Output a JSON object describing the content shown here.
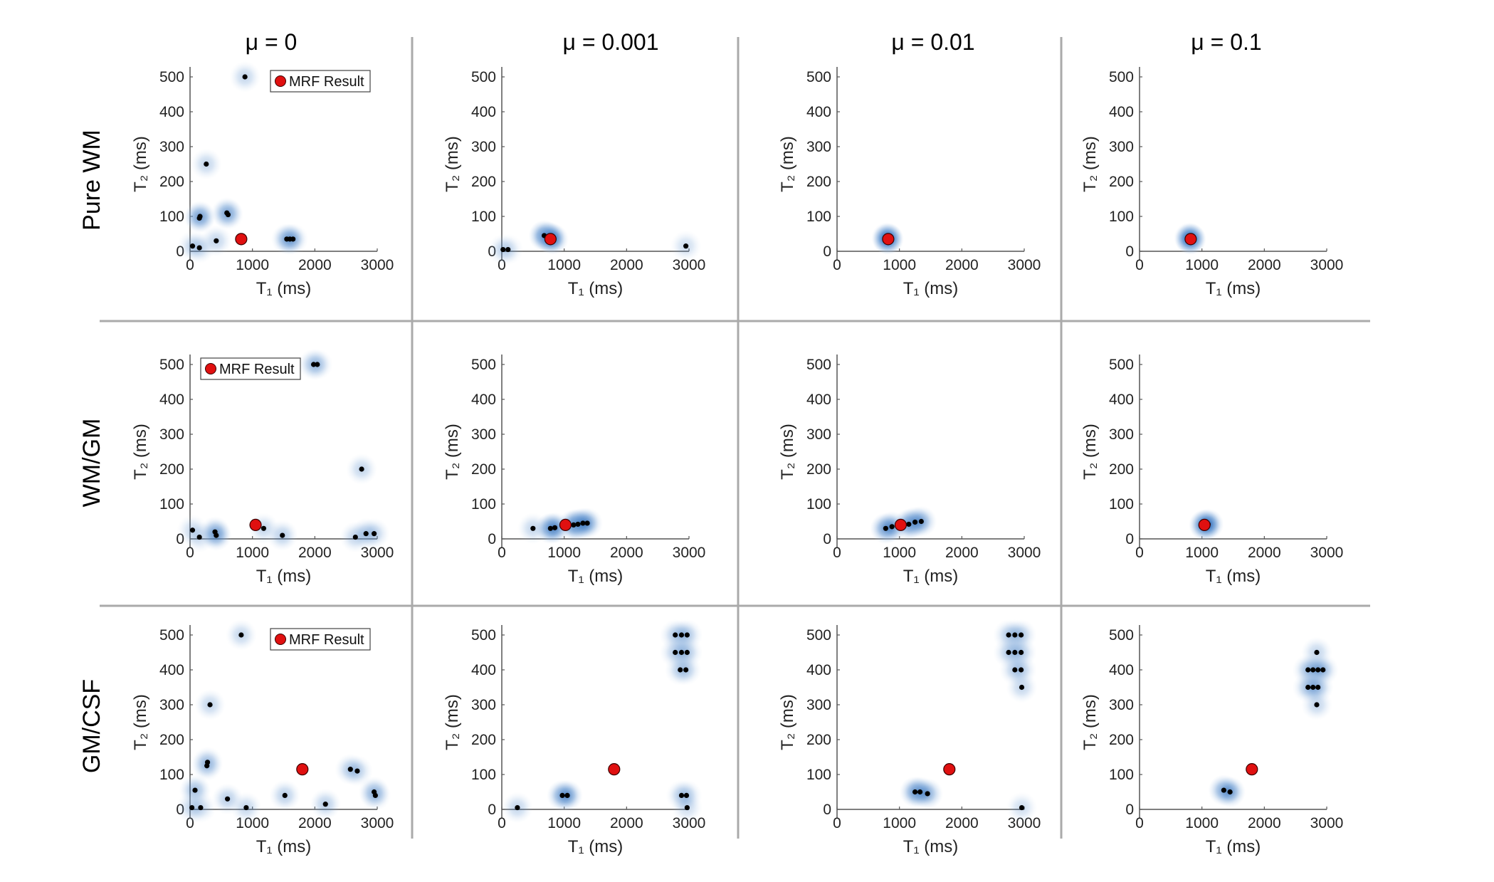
{
  "figure": {
    "column_titles": [
      "μ = 0",
      "μ = 0.001",
      "μ = 0.01",
      "μ = 0.1"
    ],
    "row_labels": [
      "Pure WM",
      "WM/GM",
      "GM/CSF"
    ],
    "xlabel": "T₁ (ms)",
    "ylabel": "T₂ (ms)",
    "legend_label": "MRF Result",
    "colors": {
      "dot": "#000000",
      "glow": "#4a86c8",
      "mrf": "#e01010",
      "divider": "#aaaaaa"
    }
  },
  "chart_data": [
    {
      "type": "scatter",
      "row": "Pure WM",
      "title": "μ = 0",
      "xlim": [
        0,
        3000
      ],
      "ylim": [
        0,
        500
      ],
      "xticks": [
        "0",
        "1000",
        "2000",
        "3000"
      ],
      "yticks": [
        "0",
        "100",
        "200",
        "300",
        "400",
        "500"
      ],
      "xlabel": "T₁ (ms)",
      "ylabel": "T₂ (ms)",
      "legend": "top-right",
      "mrf": [
        820,
        35
      ],
      "points": [
        [
          880,
          500,
          0.3
        ],
        [
          260,
          250,
          0.3
        ],
        [
          160,
          100,
          0.55
        ],
        [
          150,
          95,
          0.3
        ],
        [
          590,
          110,
          0.5
        ],
        [
          610,
          105,
          0.3
        ],
        [
          420,
          30,
          0.3
        ],
        [
          150,
          10,
          0.3
        ],
        [
          40,
          15,
          0.25
        ],
        [
          1550,
          35,
          0.45
        ],
        [
          1600,
          35,
          0.4
        ],
        [
          1650,
          35,
          0.3
        ]
      ]
    },
    {
      "type": "scatter",
      "row": "Pure WM",
      "title": "μ = 0.001",
      "xlim": [
        0,
        3000
      ],
      "ylim": [
        0,
        500
      ],
      "xticks": [
        "0",
        "1000",
        "2000",
        "3000"
      ],
      "yticks": [
        "0",
        "100",
        "200",
        "300",
        "400",
        "500"
      ],
      "xlabel": "T₁ (ms)",
      "ylabel": "T₂ (ms)",
      "legend": "",
      "mrf": [
        780,
        35
      ],
      "points": [
        [
          20,
          5,
          0.25
        ],
        [
          100,
          5,
          0.2
        ],
        [
          680,
          45,
          0.8
        ],
        [
          760,
          40,
          0.9
        ],
        [
          820,
          35,
          0.7
        ],
        [
          2950,
          15,
          0.25
        ]
      ]
    },
    {
      "type": "scatter",
      "row": "Pure WM",
      "title": "μ = 0.01",
      "xlim": [
        0,
        3000
      ],
      "ylim": [
        0,
        500
      ],
      "xticks": [
        "0",
        "1000",
        "2000",
        "3000"
      ],
      "yticks": [
        "0",
        "100",
        "200",
        "300",
        "400",
        "500"
      ],
      "xlabel": "T₁ (ms)",
      "ylabel": "T₂ (ms)",
      "legend": "",
      "mrf": [
        820,
        35
      ],
      "points": [
        [
          820,
          35,
          1.0
        ],
        [
          800,
          38,
          0.8
        ]
      ]
    },
    {
      "type": "scatter",
      "row": "Pure WM",
      "title": "μ = 0.1",
      "xlim": [
        0,
        3000
      ],
      "ylim": [
        0,
        500
      ],
      "xticks": [
        "0",
        "1000",
        "2000",
        "3000"
      ],
      "yticks": [
        "0",
        "100",
        "200",
        "300",
        "400",
        "500"
      ],
      "xlabel": "T₁ (ms)",
      "ylabel": "T₂ (ms)",
      "legend": "",
      "mrf": [
        820,
        35
      ],
      "points": [
        [
          820,
          35,
          1.0
        ],
        [
          800,
          38,
          0.8
        ]
      ]
    },
    {
      "type": "scatter",
      "row": "WM/GM",
      "title": "μ = 0",
      "xlim": [
        0,
        3000
      ],
      "ylim": [
        0,
        500
      ],
      "xticks": [
        "0",
        "1000",
        "2000",
        "3000"
      ],
      "yticks": [
        "0",
        "100",
        "200",
        "300",
        "400",
        "500"
      ],
      "xlabel": "T₁ (ms)",
      "ylabel": "T₂ (ms)",
      "legend": "top-left",
      "mrf": [
        1050,
        40
      ],
      "points": [
        [
          1980,
          500,
          0.35
        ],
        [
          2040,
          500,
          0.3
        ],
        [
          2750,
          200,
          0.3
        ],
        [
          40,
          25,
          0.25
        ],
        [
          150,
          5,
          0.25
        ],
        [
          400,
          20,
          0.45
        ],
        [
          420,
          10,
          0.5
        ],
        [
          1180,
          30,
          0.3
        ],
        [
          1480,
          10,
          0.35
        ],
        [
          2650,
          5,
          0.3
        ],
        [
          2820,
          15,
          0.35
        ],
        [
          2950,
          15,
          0.3
        ]
      ]
    },
    {
      "type": "scatter",
      "row": "WM/GM",
      "title": "μ = 0.001",
      "xlim": [
        0,
        3000
      ],
      "ylim": [
        0,
        500
      ],
      "xticks": [
        "0",
        "1000",
        "2000",
        "3000"
      ],
      "yticks": [
        "0",
        "100",
        "200",
        "300",
        "400",
        "500"
      ],
      "xlabel": "T₁ (ms)",
      "ylabel": "T₂ (ms)",
      "legend": "",
      "mrf": [
        1020,
        40
      ],
      "points": [
        [
          500,
          30,
          0.3
        ],
        [
          780,
          30,
          0.7
        ],
        [
          850,
          32,
          0.6
        ],
        [
          1150,
          40,
          0.7
        ],
        [
          1220,
          42,
          0.7
        ],
        [
          1300,
          45,
          0.6
        ],
        [
          1370,
          45,
          0.5
        ]
      ]
    },
    {
      "type": "scatter",
      "row": "WM/GM",
      "title": "μ = 0.01",
      "xlim": [
        0,
        3000
      ],
      "ylim": [
        0,
        500
      ],
      "xticks": [
        "0",
        "1000",
        "2000",
        "3000"
      ],
      "yticks": [
        "0",
        "100",
        "200",
        "300",
        "400",
        "500"
      ],
      "xlabel": "T₁ (ms)",
      "ylabel": "T₂ (ms)",
      "legend": "",
      "mrf": [
        1020,
        40
      ],
      "points": [
        [
          780,
          30,
          0.7
        ],
        [
          880,
          35,
          0.6
        ],
        [
          1150,
          42,
          0.7
        ],
        [
          1250,
          48,
          0.6
        ],
        [
          1350,
          50,
          0.5
        ]
      ]
    },
    {
      "type": "scatter",
      "row": "WM/GM",
      "title": "μ = 0.1",
      "xlim": [
        0,
        3000
      ],
      "ylim": [
        0,
        500
      ],
      "xticks": [
        "0",
        "1000",
        "2000",
        "3000"
      ],
      "yticks": [
        "0",
        "100",
        "200",
        "300",
        "400",
        "500"
      ],
      "xlabel": "T₁ (ms)",
      "ylabel": "T₂ (ms)",
      "legend": "",
      "mrf": [
        1040,
        40
      ],
      "points": [
        [
          1040,
          40,
          1.0
        ],
        [
          1100,
          42,
          0.8
        ]
      ]
    },
    {
      "type": "scatter",
      "row": "GM/CSF",
      "title": "μ = 0",
      "xlim": [
        0,
        3000
      ],
      "ylim": [
        0,
        500
      ],
      "xticks": [
        "0",
        "1000",
        "2000",
        "3000"
      ],
      "yticks": [
        "0",
        "100",
        "200",
        "300",
        "400",
        "500"
      ],
      "xlabel": "T₁ (ms)",
      "ylabel": "T₂ (ms)",
      "legend": "top-right",
      "mrf": [
        1800,
        115
      ],
      "points": [
        [
          820,
          500,
          0.3
        ],
        [
          320,
          300,
          0.3
        ],
        [
          280,
          135,
          0.35
        ],
        [
          270,
          125,
          0.3
        ],
        [
          80,
          55,
          0.45
        ],
        [
          30,
          5,
          0.3
        ],
        [
          170,
          5,
          0.25
        ],
        [
          600,
          30,
          0.35
        ],
        [
          900,
          5,
          0.3
        ],
        [
          1520,
          40,
          0.35
        ],
        [
          2170,
          15,
          0.35
        ],
        [
          2570,
          115,
          0.35
        ],
        [
          2680,
          110,
          0.3
        ],
        [
          2950,
          50,
          0.4
        ],
        [
          2970,
          40,
          0.3
        ]
      ]
    },
    {
      "type": "scatter",
      "row": "GM/CSF",
      "title": "μ = 0.001",
      "xlim": [
        0,
        3000
      ],
      "ylim": [
        0,
        500
      ],
      "xticks": [
        "0",
        "1000",
        "2000",
        "3000"
      ],
      "yticks": [
        "0",
        "100",
        "200",
        "300",
        "400",
        "500"
      ],
      "xlabel": "T₁ (ms)",
      "ylabel": "T₂ (ms)",
      "legend": "",
      "mrf": [
        1800,
        115
      ],
      "points": [
        [
          250,
          5,
          0.3
        ],
        [
          970,
          40,
          0.6
        ],
        [
          1050,
          40,
          0.6
        ],
        [
          2780,
          500,
          0.3
        ],
        [
          2880,
          500,
          0.3
        ],
        [
          2970,
          500,
          0.3
        ],
        [
          2780,
          450,
          0.3
        ],
        [
          2880,
          450,
          0.3
        ],
        [
          2970,
          450,
          0.3
        ],
        [
          2860,
          400,
          0.3
        ],
        [
          2950,
          400,
          0.3
        ],
        [
          2880,
          40,
          0.3
        ],
        [
          2960,
          40,
          0.3
        ],
        [
          2970,
          5,
          0.25
        ]
      ]
    },
    {
      "type": "scatter",
      "row": "GM/CSF",
      "title": "μ = 0.01",
      "xlim": [
        0,
        3000
      ],
      "ylim": [
        0,
        500
      ],
      "xticks": [
        "0",
        "1000",
        "2000",
        "3000"
      ],
      "yticks": [
        "0",
        "100",
        "200",
        "300",
        "400",
        "500"
      ],
      "xlabel": "T₁ (ms)",
      "ylabel": "T₂ (ms)",
      "legend": "",
      "mrf": [
        1800,
        115
      ],
      "points": [
        [
          1250,
          50,
          0.6
        ],
        [
          1330,
          50,
          0.6
        ],
        [
          1450,
          45,
          0.5
        ],
        [
          2750,
          500,
          0.3
        ],
        [
          2850,
          500,
          0.3
        ],
        [
          2950,
          500,
          0.3
        ],
        [
          2750,
          450,
          0.3
        ],
        [
          2850,
          450,
          0.3
        ],
        [
          2950,
          450,
          0.3
        ],
        [
          2850,
          400,
          0.3
        ],
        [
          2950,
          400,
          0.3
        ],
        [
          2960,
          350,
          0.3
        ],
        [
          2960,
          5,
          0.25
        ]
      ]
    },
    {
      "type": "scatter",
      "row": "GM/CSF",
      "title": "μ = 0.1",
      "xlim": [
        0,
        3000
      ],
      "ylim": [
        0,
        500
      ],
      "xticks": [
        "0",
        "1000",
        "2000",
        "3000"
      ],
      "yticks": [
        "0",
        "100",
        "200",
        "300",
        "400",
        "500"
      ],
      "xlabel": "T₁ (ms)",
      "ylabel": "T₂ (ms)",
      "legend": "",
      "mrf": [
        1800,
        115
      ],
      "points": [
        [
          1350,
          55,
          0.6
        ],
        [
          1450,
          50,
          0.6
        ],
        [
          2840,
          450,
          0.3
        ],
        [
          2700,
          400,
          0.35
        ],
        [
          2780,
          400,
          0.35
        ],
        [
          2860,
          400,
          0.35
        ],
        [
          2940,
          400,
          0.35
        ],
        [
          2700,
          350,
          0.35
        ],
        [
          2780,
          350,
          0.35
        ],
        [
          2860,
          350,
          0.35
        ],
        [
          2840,
          300,
          0.3
        ]
      ]
    }
  ]
}
